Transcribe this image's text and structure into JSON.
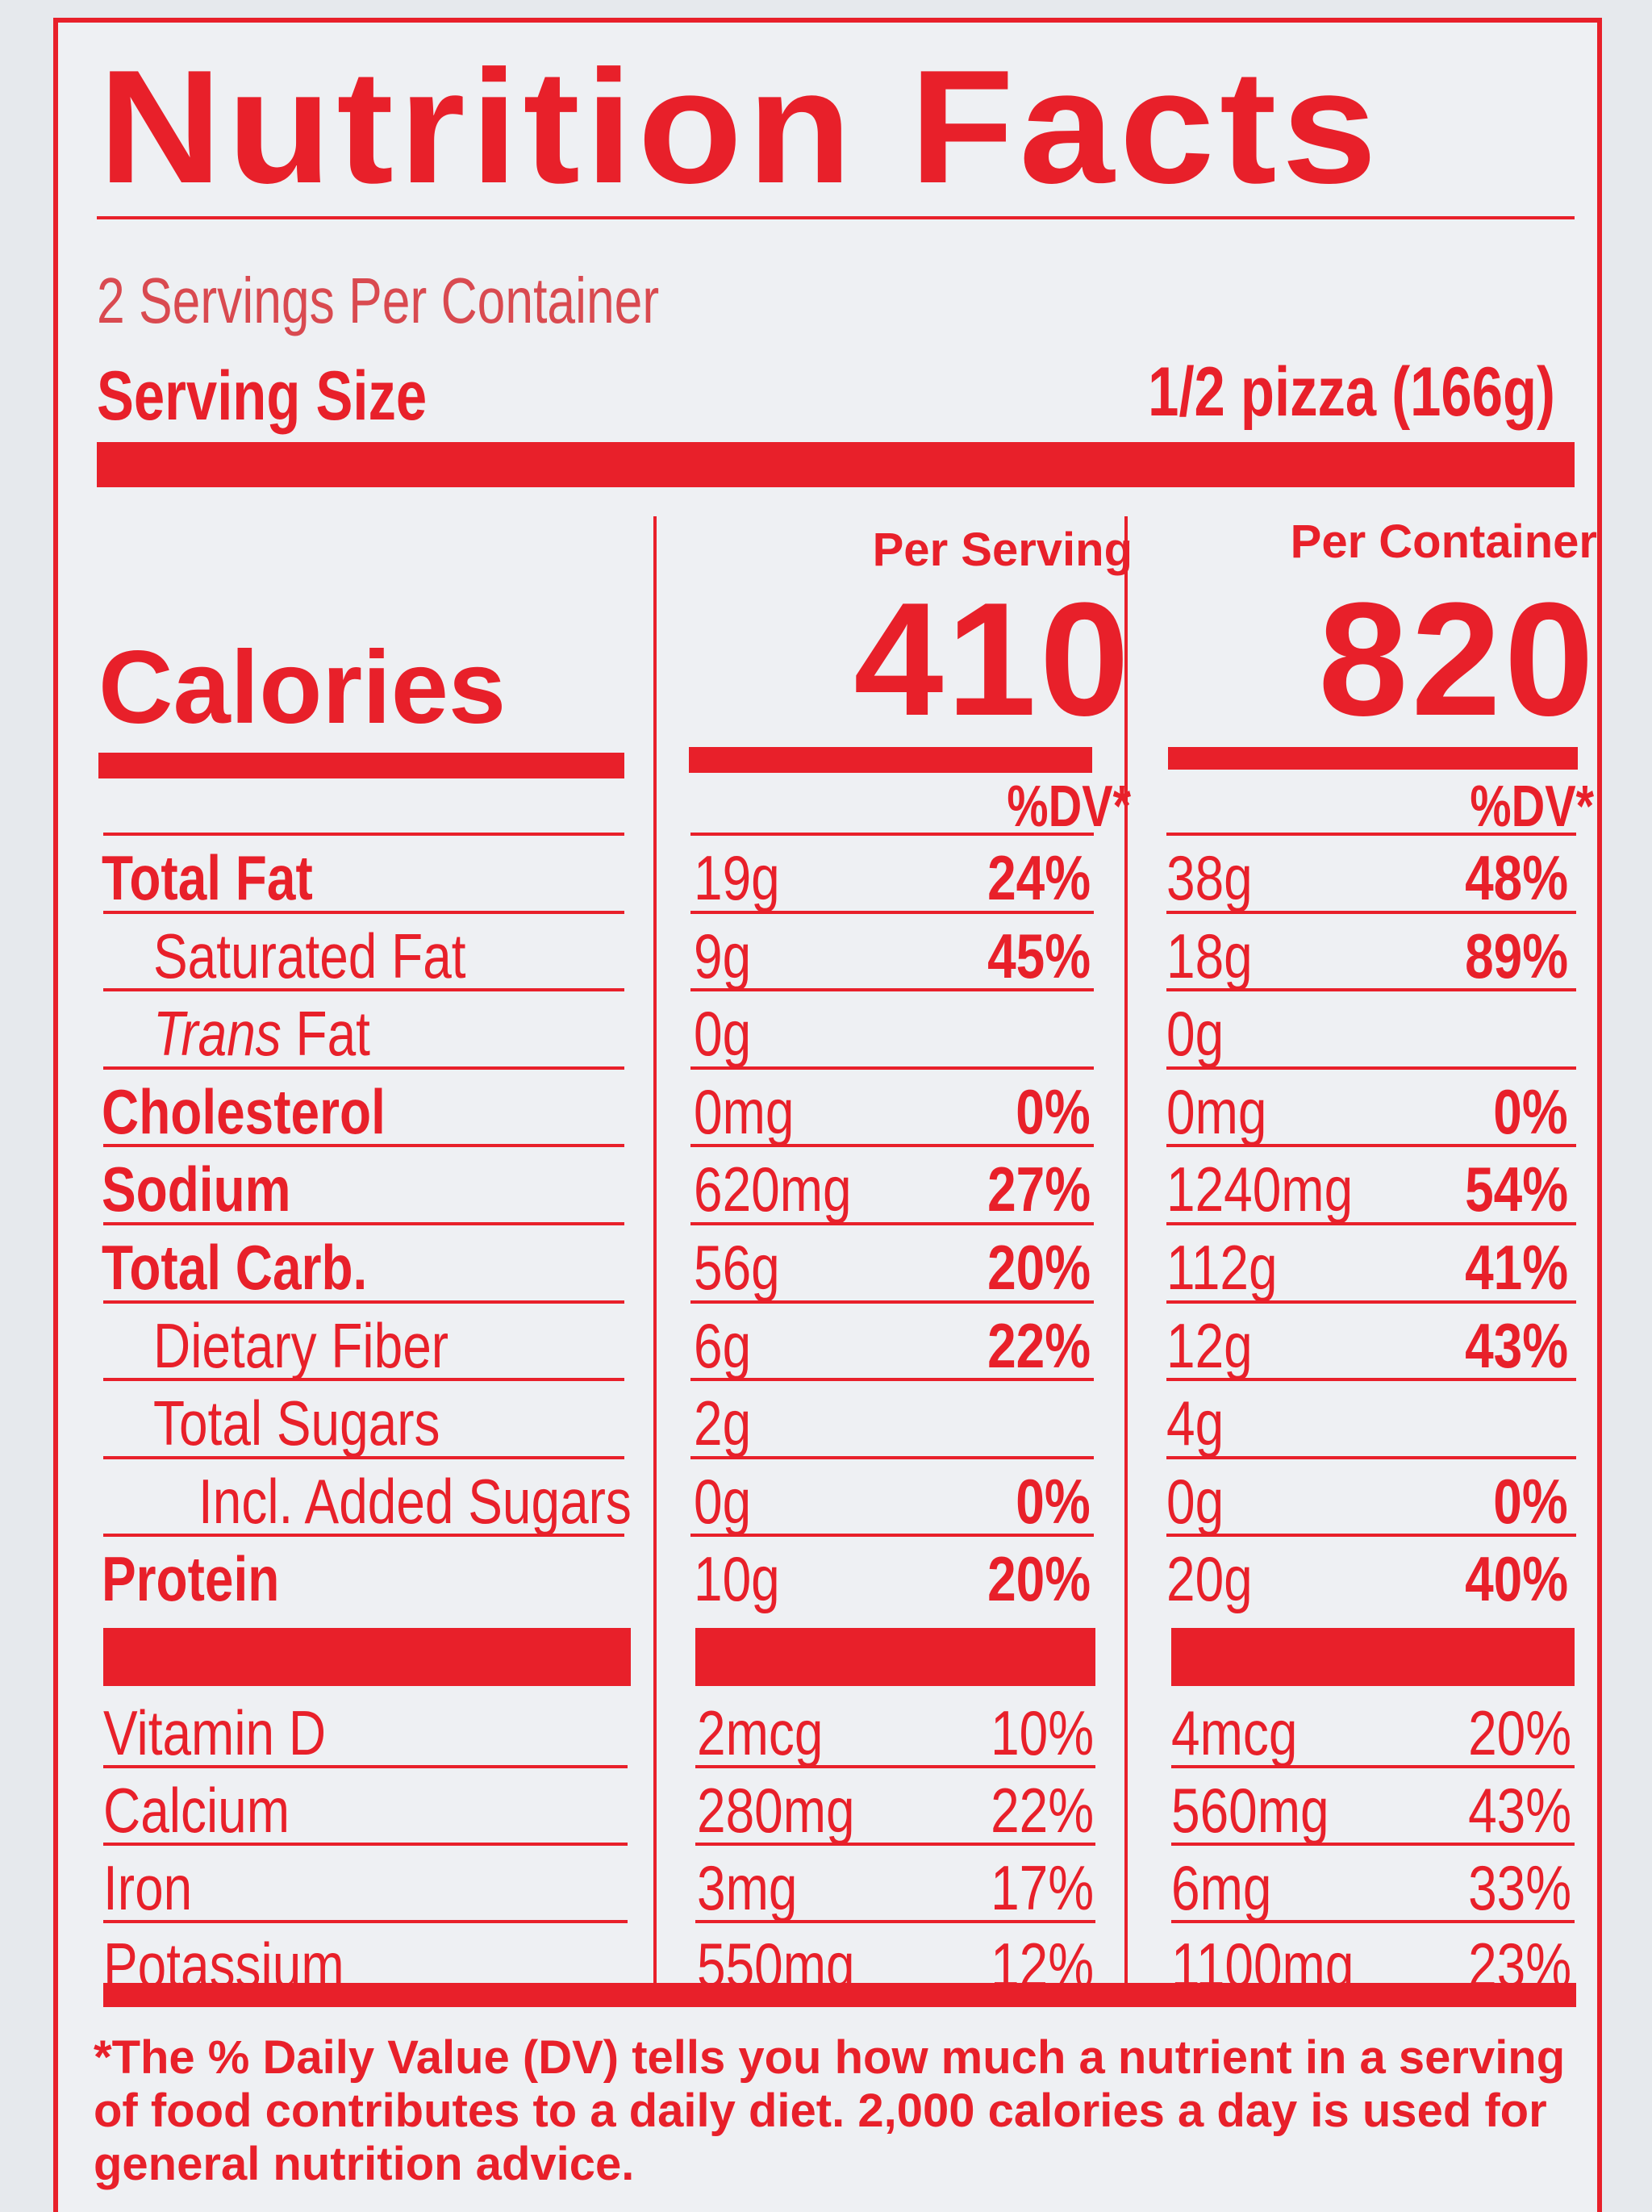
{
  "title": "Nutrition Facts",
  "servings_per_container": "2 Servings Per Container",
  "serving_size_label": "Serving Size",
  "serving_size_value": "1/2 pizza (166g)",
  "calories_label": "Calories",
  "per_serving": {
    "heading": "Per Serving",
    "calories": "410",
    "dv_heading": "%DV*"
  },
  "per_container": {
    "heading": "Per Container",
    "calories": "820",
    "dv_heading": "%DV*"
  },
  "nutrients": [
    {
      "name": "Total Fat",
      "serv_amt": "19g",
      "serv_dv": "24%",
      "cont_amt": "38g",
      "cont_dv": "48%"
    },
    {
      "name": "Saturated Fat",
      "serv_amt": "9g",
      "serv_dv": "45%",
      "cont_amt": "18g",
      "cont_dv": "89%"
    },
    {
      "name_italic": "Trans",
      "name_rest": " Fat",
      "serv_amt": "0g",
      "serv_dv": "",
      "cont_amt": "0g",
      "cont_dv": ""
    },
    {
      "name": "Cholesterol",
      "serv_amt": "0mg",
      "serv_dv": "0%",
      "cont_amt": "0mg",
      "cont_dv": "0%"
    },
    {
      "name": "Sodium",
      "serv_amt": "620mg",
      "serv_dv": "27%",
      "cont_amt": "1240mg",
      "cont_dv": "54%"
    },
    {
      "name": "Total Carb.",
      "serv_amt": "56g",
      "serv_dv": "20%",
      "cont_amt": "112g",
      "cont_dv": "41%"
    },
    {
      "name": "Dietary Fiber",
      "serv_amt": "6g",
      "serv_dv": "22%",
      "cont_amt": "12g",
      "cont_dv": "43%"
    },
    {
      "name": "Total Sugars",
      "serv_amt": "2g",
      "serv_dv": "",
      "cont_amt": "4g",
      "cont_dv": ""
    },
    {
      "name": "Incl. Added Sugars",
      "serv_amt": "0g",
      "serv_dv": "0%",
      "cont_amt": "0g",
      "cont_dv": "0%"
    },
    {
      "name": "Protein",
      "serv_amt": "10g",
      "serv_dv": "20%",
      "cont_amt": "20g",
      "cont_dv": "40%"
    }
  ],
  "vitamins": [
    {
      "name": "Vitamin D",
      "serv_amt": "2mcg",
      "serv_dv": "10%",
      "cont_amt": "4mcg",
      "cont_dv": "20%"
    },
    {
      "name": "Calcium",
      "serv_amt": "280mg",
      "serv_dv": "22%",
      "cont_amt": "560mg",
      "cont_dv": "43%"
    },
    {
      "name": "Iron",
      "serv_amt": "3mg",
      "serv_dv": "17%",
      "cont_amt": "6mg",
      "cont_dv": "33%"
    },
    {
      "name": "Potassium",
      "serv_amt": "550mg",
      "serv_dv": "12%",
      "cont_amt": "1100mg",
      "cont_dv": "23%"
    }
  ],
  "footnote": "*The % Daily Value (DV) tells you how much a nutrient in a serving of food contributes to a daily diet. 2,000 calories a day is used for general nutrition advice.",
  "colors": {
    "ink": "#e8202a",
    "paper": "#eef0f3"
  }
}
